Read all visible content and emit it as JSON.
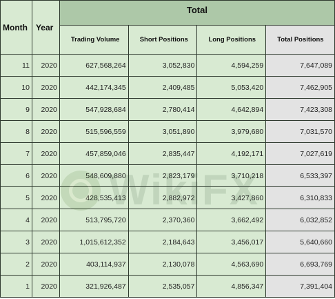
{
  "header": {
    "month": "Month",
    "year": "Year",
    "total": "Total",
    "trading_volume": "Trading Volume",
    "short_positions": "Short Positions",
    "long_positions": "Long Positions",
    "total_positions": "Total Positions"
  },
  "rows": [
    {
      "month": "11",
      "year": "2020",
      "volume": "627,568,264",
      "short": "3,052,830",
      "long": "4,594,259",
      "total": "7,647,089"
    },
    {
      "month": "10",
      "year": "2020",
      "volume": "442,174,345",
      "short": "2,409,485",
      "long": "5,053,420",
      "total": "7,462,905"
    },
    {
      "month": "9",
      "year": "2020",
      "volume": "547,928,684",
      "short": "2,780,414",
      "long": "4,642,894",
      "total": "7,423,308"
    },
    {
      "month": "8",
      "year": "2020",
      "volume": "515,596,559",
      "short": "3,051,890",
      "long": "3,979,680",
      "total": "7,031,570"
    },
    {
      "month": "7",
      "year": "2020",
      "volume": "457,859,046",
      "short": "2,835,447",
      "long": "4,192,171",
      "total": "7,027,619"
    },
    {
      "month": "6",
      "year": "2020",
      "volume": "548,609,880",
      "short": "2,823,179",
      "long": "3,710,218",
      "total": "6,533,397"
    },
    {
      "month": "5",
      "year": "2020",
      "volume": "428,535,413",
      "short": "2,882,972",
      "long": "3,427,860",
      "total": "6,310,833"
    },
    {
      "month": "4",
      "year": "2020",
      "volume": "513,795,720",
      "short": "2,370,360",
      "long": "3,662,492",
      "total": "6,032,852"
    },
    {
      "month": "3",
      "year": "2020",
      "volume": "1,015,612,352",
      "short": "2,184,643",
      "long": "3,456,017",
      "total": "5,640,660"
    },
    {
      "month": "2",
      "year": "2020",
      "volume": "403,114,937",
      "short": "2,130,078",
      "long": "4,563,690",
      "total": "6,693,769"
    },
    {
      "month": "1",
      "year": "2020",
      "volume": "321,926,487",
      "short": "2,535,057",
      "long": "4,856,347",
      "total": "7,391,404"
    }
  ],
  "watermark": {
    "text": "WikiFX"
  }
}
